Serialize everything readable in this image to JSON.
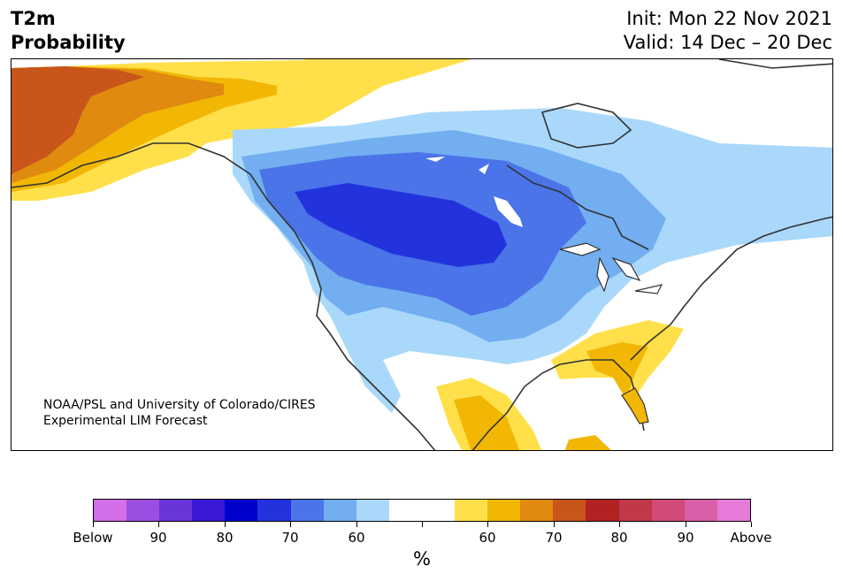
{
  "header": {
    "title_line1": "T2m",
    "title_line2": "Probability",
    "init": "Init: Mon 22 Nov 2021",
    "valid": "Valid: 14 Dec – 20 Dec"
  },
  "credit": {
    "line1": "NOAA/PSL and University of Colorado/CIRES",
    "line2": "Experimental LIM Forecast"
  },
  "colorbar": {
    "colors": [
      "#d36ee8",
      "#9b4fe0",
      "#6a35d8",
      "#3a18d6",
      "#0000cc",
      "#2233dd",
      "#4a74e8",
      "#72aef0",
      "#a9d8fa",
      "#ffffff",
      "#ffffff",
      "#ffe04a",
      "#f2b705",
      "#e08a10",
      "#c8561a",
      "#b22222",
      "#c0384a",
      "#d14a7a",
      "#d85fa8",
      "#e67ad8"
    ],
    "tick_labels": [
      "Below",
      "90",
      "80",
      "70",
      "60",
      "",
      "60",
      "70",
      "80",
      "90",
      "Above"
    ],
    "unit": "%"
  },
  "map": {
    "region": "North America",
    "colors": {
      "land": "#ffffff",
      "p60_cold": "#a9d8fa",
      "p65_cold": "#72aef0",
      "p70_cold": "#4a74e8",
      "p75_cold": "#2233dd",
      "p60_warm": "#ffe04a",
      "p65_warm": "#f2b705",
      "p70_warm": "#e08a10",
      "p75_warm": "#c8561a",
      "coast": "#333333"
    }
  }
}
